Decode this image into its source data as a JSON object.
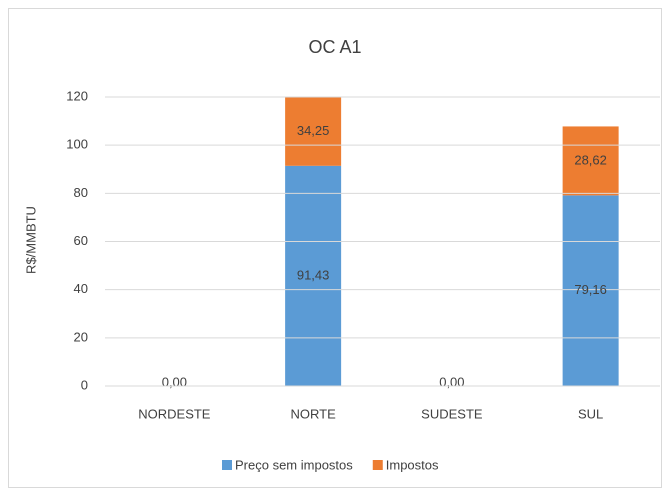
{
  "chart_data": {
    "type": "stacked-bar",
    "title": "OC A1",
    "y_label": "R$/MMBTU",
    "categories": [
      "NORDESTE",
      "NORTE",
      "SUDESTE",
      "SUL"
    ],
    "series": [
      {
        "name": "Preço sem impostos",
        "color": "#5b9bd5",
        "values": [
          0,
          91.43,
          0,
          79.16
        ],
        "value_labels": [
          "0,00",
          "91,43",
          "0,00",
          "79,16"
        ]
      },
      {
        "name": "Impostos",
        "color": "#ed7d31",
        "values": [
          null,
          34.25,
          null,
          28.62
        ],
        "value_labels": [
          null,
          "34,25",
          null,
          "28,62"
        ]
      }
    ],
    "ylim": [
      0,
      120
    ],
    "yticks": [
      0,
      20,
      40,
      60,
      80,
      100,
      120
    ],
    "grid": true,
    "legend": "bottom"
  }
}
